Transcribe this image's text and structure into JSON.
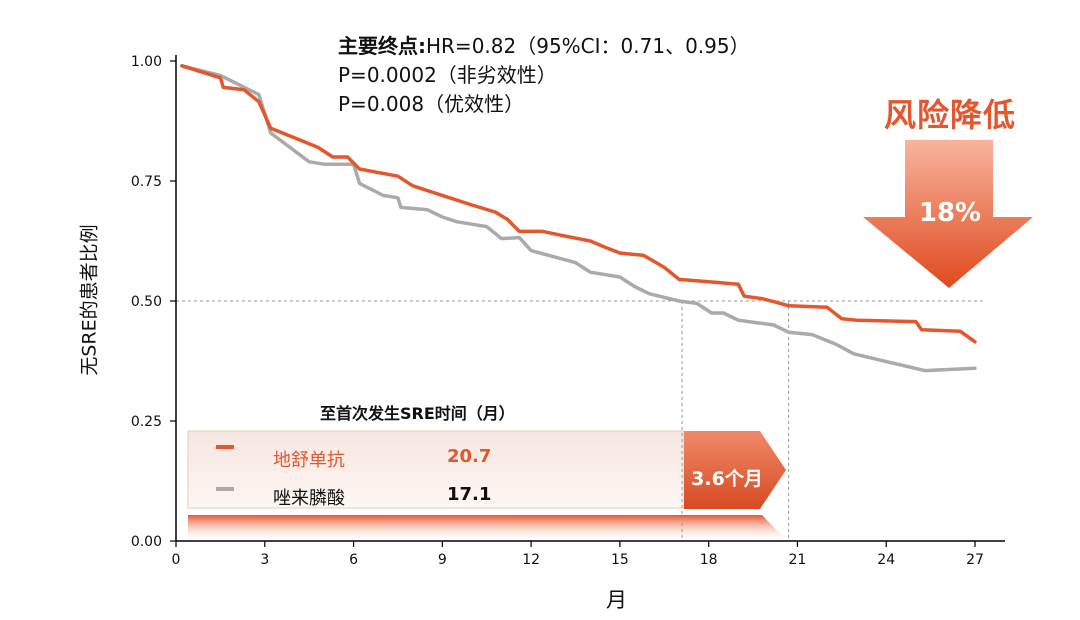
{
  "stats": {
    "label": "主要终点:",
    "hr_line": "HR=0.82（95%CI：0.71、0.95）",
    "p_noninferiority": "P=0.0002（非劣效性）",
    "p_superiority": "P=0.008（优效性）"
  },
  "risk": {
    "title": "风险降低",
    "value": "18%"
  },
  "table": {
    "title": "至首次发生SRE时间（月）",
    "rows": [
      {
        "name": "地舒单抗",
        "value": "20.7"
      },
      {
        "name": "唑来膦酸",
        "value": "17.1"
      }
    ],
    "difference": "3.6个月"
  },
  "colors": {
    "denosumab": "#e4572e",
    "zoledronic": "#aaaaaa",
    "accent": "#e4572e"
  },
  "chart_data": {
    "type": "line",
    "xlabel": "月",
    "ylabel": "无SRE的患者比例",
    "xlim": [
      0,
      27
    ],
    "ylim": [
      0,
      1
    ],
    "x_ticks": [
      0,
      3,
      6,
      9,
      12,
      15,
      18,
      21,
      24,
      27
    ],
    "y_ticks": [
      0,
      0.25,
      0.5,
      0.75,
      1.0
    ],
    "y_tick_labels": [
      "0.00",
      "0.25",
      "0.50",
      "0.75",
      "1.00"
    ],
    "reference_line_y": 0.5,
    "median_markers_x": [
      17.1,
      20.7
    ],
    "series": [
      {
        "name": "地舒单抗",
        "color": "#e4572e",
        "points": [
          [
            0.2,
            0.99
          ],
          [
            1.5,
            0.965
          ],
          [
            1.6,
            0.945
          ],
          [
            2.3,
            0.94
          ],
          [
            2.8,
            0.915
          ],
          [
            3.2,
            0.86
          ],
          [
            4,
            0.84
          ],
          [
            4.8,
            0.82
          ],
          [
            5.3,
            0.8
          ],
          [
            5.8,
            0.8
          ],
          [
            6.2,
            0.775
          ],
          [
            7.5,
            0.76
          ],
          [
            8,
            0.74
          ],
          [
            9,
            0.72
          ],
          [
            10,
            0.7
          ],
          [
            10.8,
            0.685
          ],
          [
            11.2,
            0.67
          ],
          [
            11.6,
            0.645
          ],
          [
            12.4,
            0.645
          ],
          [
            13,
            0.637
          ],
          [
            14,
            0.625
          ],
          [
            14.5,
            0.612
          ],
          [
            15,
            0.6
          ],
          [
            15.8,
            0.595
          ],
          [
            16.5,
            0.57
          ],
          [
            17,
            0.545
          ],
          [
            18,
            0.54
          ],
          [
            19,
            0.535
          ],
          [
            19.2,
            0.51
          ],
          [
            19.8,
            0.505
          ],
          [
            20.3,
            0.497
          ],
          [
            20.7,
            0.49
          ],
          [
            22,
            0.487
          ],
          [
            22.5,
            0.463
          ],
          [
            23,
            0.46
          ],
          [
            25,
            0.457
          ],
          [
            25.2,
            0.44
          ],
          [
            26.5,
            0.437
          ],
          [
            27,
            0.415
          ]
        ]
      },
      {
        "name": "唑来膦酸",
        "color": "#aaaaaa",
        "points": [
          [
            0.2,
            0.99
          ],
          [
            1.5,
            0.97
          ],
          [
            2.8,
            0.93
          ],
          [
            3.2,
            0.85
          ],
          [
            4.5,
            0.79
          ],
          [
            5,
            0.785
          ],
          [
            6,
            0.785
          ],
          [
            6.2,
            0.745
          ],
          [
            7,
            0.72
          ],
          [
            7.5,
            0.715
          ],
          [
            7.6,
            0.695
          ],
          [
            8.5,
            0.69
          ],
          [
            9,
            0.675
          ],
          [
            9.5,
            0.665
          ],
          [
            10,
            0.66
          ],
          [
            10.5,
            0.655
          ],
          [
            11,
            0.63
          ],
          [
            11.6,
            0.632
          ],
          [
            12,
            0.605
          ],
          [
            12.6,
            0.595
          ],
          [
            13.5,
            0.58
          ],
          [
            14,
            0.56
          ],
          [
            15,
            0.55
          ],
          [
            15.5,
            0.53
          ],
          [
            16,
            0.515
          ],
          [
            17,
            0.5
          ],
          [
            17.6,
            0.495
          ],
          [
            18.1,
            0.475
          ],
          [
            18.5,
            0.475
          ],
          [
            19,
            0.46
          ],
          [
            19.6,
            0.455
          ],
          [
            20.2,
            0.45
          ],
          [
            20.7,
            0.435
          ],
          [
            21.5,
            0.43
          ],
          [
            22.3,
            0.41
          ],
          [
            22.9,
            0.39
          ],
          [
            25.3,
            0.355
          ],
          [
            27,
            0.36
          ]
        ]
      }
    ]
  }
}
